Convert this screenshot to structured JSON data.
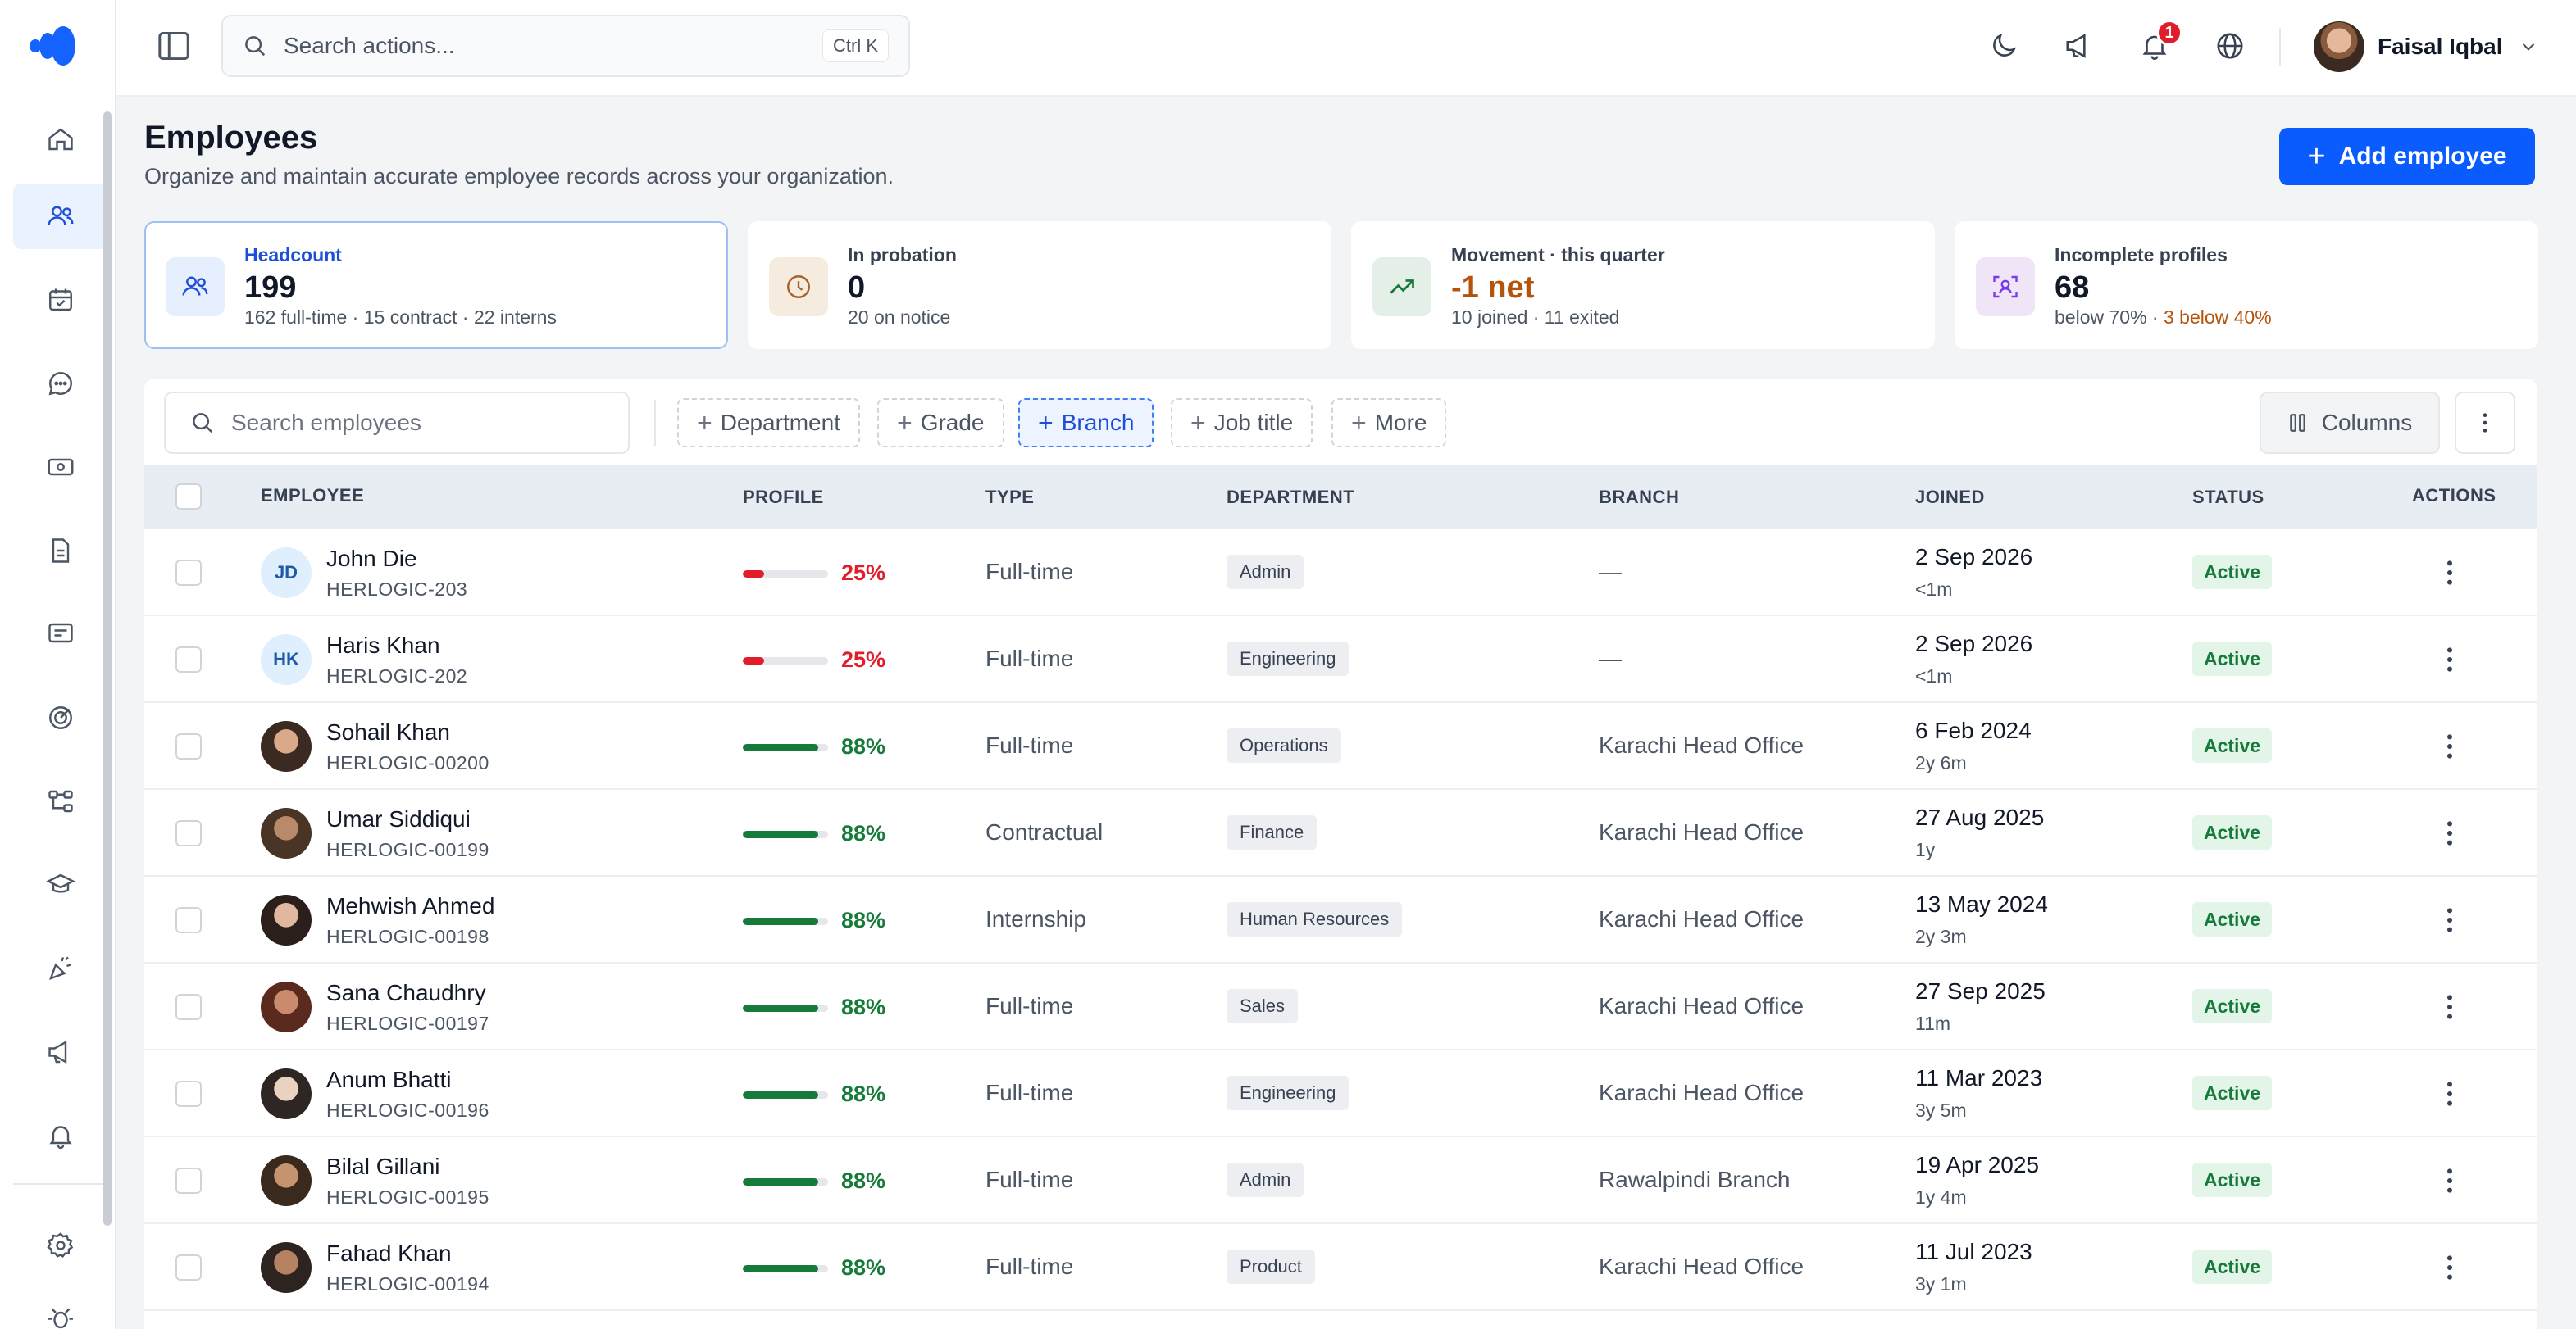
{
  "colors": {
    "accent": "#0b5cff",
    "danger": "#e11d2a",
    "success": "#167a3a",
    "warning": "#b45309"
  },
  "search": {
    "placeholder": "Search actions...",
    "shortcut": "Ctrl K"
  },
  "topbar": {
    "icons": [
      "moon-icon",
      "megaphone-icon",
      "bell-icon",
      "globe-icon"
    ],
    "notification_count": "1",
    "user_name": "Faisal Iqbal"
  },
  "sidebar": {
    "items": [
      "home-icon",
      "users-icon",
      "calendar-icon",
      "chat-icon",
      "banknote-icon",
      "document-icon",
      "message-square-icon",
      "target-icon",
      "workflow-icon",
      "graduation-cap-icon",
      "party-icon",
      "megaphone-icon",
      "bell-icon"
    ],
    "active_index": 1,
    "bottom_items": [
      "settings-icon",
      "bug-icon"
    ]
  },
  "page": {
    "title": "Employees",
    "subtitle": "Organize and maintain accurate employee records across your organization.",
    "add_button": "Add employee"
  },
  "stats": [
    {
      "label": "Headcount",
      "value": "199",
      "sub": "162 full-time · 15 contract · 22 interns",
      "icon": "users-icon"
    },
    {
      "label": "In probation",
      "value": "0",
      "sub": "20 on notice",
      "icon": "clock-icon"
    },
    {
      "label": "Movement · this quarter",
      "value": "-1 net",
      "sub": "10 joined · 11 exited",
      "icon": "trending-up-icon"
    },
    {
      "label": "Incomplete profiles",
      "value": "68",
      "sub": "below 70% · ",
      "sub_highlight": "3 below 40%",
      "icon": "scan-user-icon"
    }
  ],
  "filters": {
    "search_placeholder": "Search employees",
    "chips": [
      "Department",
      "Grade",
      "Branch",
      "Job title",
      "More"
    ],
    "active_chip": "Branch",
    "columns_label": "Columns"
  },
  "table": {
    "headers": [
      "EMPLOYEE",
      "PROFILE",
      "TYPE",
      "DEPARTMENT",
      "BRANCH",
      "JOINED",
      "STATUS",
      "ACTIONS"
    ],
    "rows": [
      {
        "initials": "JD",
        "name": "John Die",
        "code": "HERLOGIC-203",
        "profile": 25,
        "profile_label": "25%",
        "type": "Full-time",
        "department": "Admin",
        "branch": "—",
        "joined": "2 Sep 2026",
        "tenure": "<1m",
        "status": "Active"
      },
      {
        "initials": "HK",
        "name": "Haris Khan",
        "code": "HERLOGIC-202",
        "profile": 25,
        "profile_label": "25%",
        "type": "Full-time",
        "department": "Engineering",
        "branch": "—",
        "joined": "2 Sep 2026",
        "tenure": "<1m",
        "status": "Active"
      },
      {
        "initials": "",
        "name": "Sohail Khan",
        "code": "HERLOGIC-00200",
        "profile": 88,
        "profile_label": "88%",
        "type": "Full-time",
        "department": "Operations",
        "branch": "Karachi Head Office",
        "joined": "6 Feb 2024",
        "tenure": "2y 6m",
        "status": "Active"
      },
      {
        "initials": "",
        "name": "Umar Siddiqui",
        "code": "HERLOGIC-00199",
        "profile": 88,
        "profile_label": "88%",
        "type": "Contractual",
        "department": "Finance",
        "branch": "Karachi Head Office",
        "joined": "27 Aug 2025",
        "tenure": "1y",
        "status": "Active"
      },
      {
        "initials": "",
        "name": "Mehwish Ahmed",
        "code": "HERLOGIC-00198",
        "profile": 88,
        "profile_label": "88%",
        "type": "Internship",
        "department": "Human Resources",
        "branch": "Karachi Head Office",
        "joined": "13 May 2024",
        "tenure": "2y 3m",
        "status": "Active"
      },
      {
        "initials": "",
        "name": "Sana Chaudhry",
        "code": "HERLOGIC-00197",
        "profile": 88,
        "profile_label": "88%",
        "type": "Full-time",
        "department": "Sales",
        "branch": "Karachi Head Office",
        "joined": "27 Sep 2025",
        "tenure": "11m",
        "status": "Active"
      },
      {
        "initials": "",
        "name": "Anum Bhatti",
        "code": "HERLOGIC-00196",
        "profile": 88,
        "profile_label": "88%",
        "type": "Full-time",
        "department": "Engineering",
        "branch": "Karachi Head Office",
        "joined": "11 Mar 2023",
        "tenure": "3y 5m",
        "status": "Active"
      },
      {
        "initials": "",
        "name": "Bilal Gillani",
        "code": "HERLOGIC-00195",
        "profile": 88,
        "profile_label": "88%",
        "type": "Full-time",
        "department": "Admin",
        "branch": "Rawalpindi Branch",
        "joined": "19 Apr 2025",
        "tenure": "1y 4m",
        "status": "Active"
      },
      {
        "initials": "",
        "name": "Fahad Khan",
        "code": "HERLOGIC-00194",
        "profile": 88,
        "profile_label": "88%",
        "type": "Full-time",
        "department": "Product",
        "branch": "Karachi Head Office",
        "joined": "11 Jul 2023",
        "tenure": "3y 1m",
        "status": "Active"
      }
    ]
  }
}
